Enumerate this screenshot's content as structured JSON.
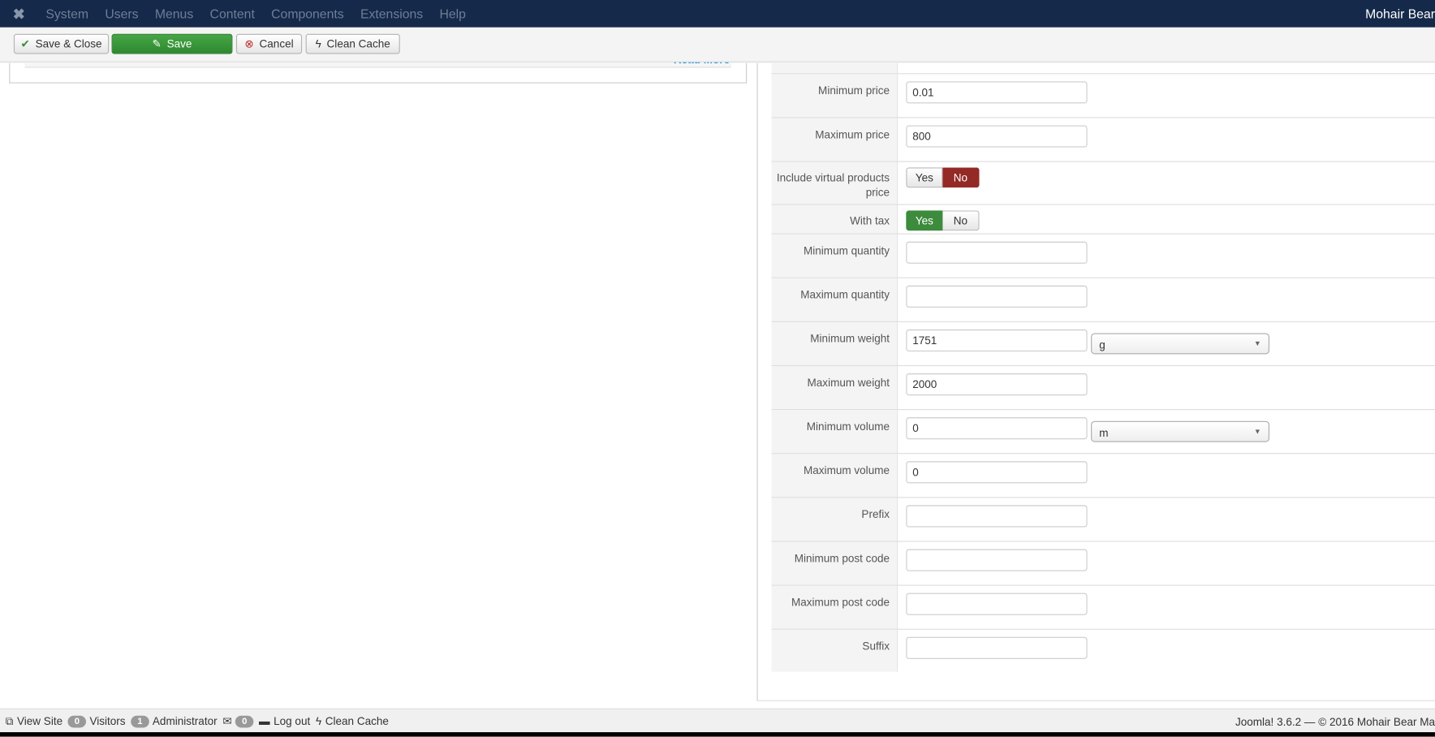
{
  "topbar": {
    "menu": [
      "System",
      "Users",
      "Menus",
      "Content",
      "Components",
      "Extensions",
      "Help"
    ],
    "site_name": "Mohair Bear"
  },
  "toolbar": {
    "save_close": "Save & Close",
    "save": "Save",
    "cancel": "Cancel",
    "clean_cache": "Clean Cache"
  },
  "left": {
    "read_more": "Read More"
  },
  "form": {
    "min_price": {
      "label": "Minimum price",
      "value": "0.01"
    },
    "max_price": {
      "label": "Maximum price",
      "value": "800"
    },
    "include_virtual": {
      "label": "Include virtual products price",
      "yes": "Yes",
      "no": "No",
      "selected": "No"
    },
    "with_tax": {
      "label": "With tax",
      "yes": "Yes",
      "no": "No",
      "selected": "Yes"
    },
    "min_qty": {
      "label": "Minimum quantity",
      "value": ""
    },
    "max_qty": {
      "label": "Maximum quantity",
      "value": ""
    },
    "min_weight": {
      "label": "Minimum weight",
      "value": "1751",
      "unit": "g"
    },
    "max_weight": {
      "label": "Maximum weight",
      "value": "2000"
    },
    "min_volume": {
      "label": "Minimum volume",
      "value": "0",
      "unit": "m"
    },
    "max_volume": {
      "label": "Maximum volume",
      "value": "0"
    },
    "prefix": {
      "label": "Prefix",
      "value": ""
    },
    "min_post": {
      "label": "Minimum post code",
      "value": ""
    },
    "max_post": {
      "label": "Maximum post code",
      "value": ""
    },
    "suffix": {
      "label": "Suffix",
      "value": ""
    }
  },
  "status": {
    "view_site": "View Site",
    "visitors_count": "0",
    "visitors": "Visitors",
    "admin_count": "1",
    "admin": "Administrator",
    "messages_count": "0",
    "logout": "Log out",
    "clean_cache": "Clean Cache",
    "copyright": "Joomla! 3.6.2  —  © 2016 Mohair Bear Ma"
  },
  "colors": {
    "topbar": "#15294a",
    "save": "#3d8b3d",
    "no_active": "#942a25"
  }
}
